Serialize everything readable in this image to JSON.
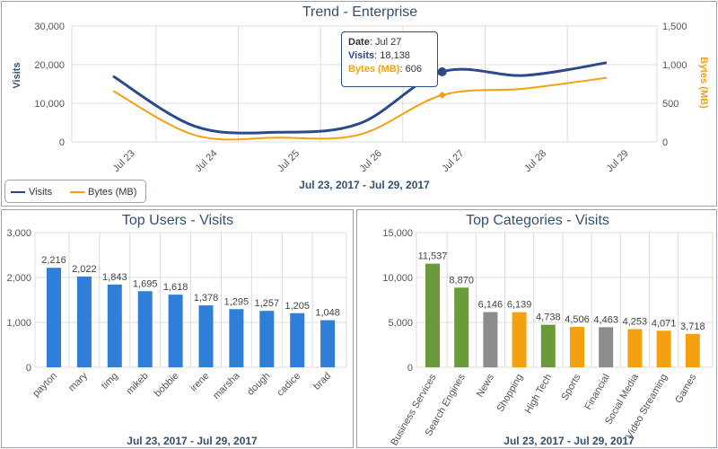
{
  "chart_data": [
    {
      "type": "line",
      "title": "Trend - Enterprise",
      "subtitle": "Jul 23, 2017 - Jul 29, 2017",
      "categories": [
        "Jul 23",
        "Jul 24",
        "Jul 25",
        "Jul 26",
        "Jul 27",
        "Jul 28",
        "Jul 29"
      ],
      "y_left": {
        "label": "Visits",
        "ticks": [
          "0",
          "10,000",
          "20,000",
          "30,000"
        ],
        "range": [
          0,
          30000
        ]
      },
      "y_right": {
        "label": "Bytes (MB)",
        "ticks": [
          "0",
          "500",
          "1,000",
          "1,500"
        ],
        "range": [
          0,
          1500
        ]
      },
      "series": [
        {
          "name": "Visits",
          "axis": "left",
          "color": "#2c4a8a",
          "values": [
            17000,
            4000,
            2500,
            4800,
            18138,
            17200,
            20500
          ]
        },
        {
          "name": "Bytes (MB)",
          "axis": "right",
          "color": "#f5a00f",
          "values": [
            660,
            85,
            55,
            95,
            606,
            690,
            830
          ]
        }
      ],
      "grid": true,
      "legend": "bottom-left",
      "tooltip": {
        "date_label": "Date",
        "date_value": "Jul 27",
        "visits_label": "Visits",
        "visits_value": "18,138",
        "bytes_label": "Bytes (MB)",
        "bytes_value": "606"
      }
    },
    {
      "type": "bar",
      "title": "Top Users - Visits",
      "subtitle": "Jul 23, 2017 - Jul 29, 2017",
      "categories": [
        "payton",
        "mary",
        "timg",
        "mikeb",
        "bobbie",
        "irene",
        "marsha",
        "dough",
        "cadice",
        "brad"
      ],
      "values": [
        2216,
        2022,
        1843,
        1695,
        1618,
        1378,
        1295,
        1257,
        1205,
        1048
      ],
      "value_labels": [
        "2,216",
        "2,022",
        "1,843",
        "1,695",
        "1,618",
        "1,378",
        "1,295",
        "1,257",
        "1,205",
        "1,048"
      ],
      "y_ticks": [
        "0",
        "1,000",
        "2,000",
        "3,000"
      ],
      "ylim": [
        0,
        3000
      ],
      "color": "#2f7ed8",
      "grid": true
    },
    {
      "type": "bar",
      "title": "Top Categories - Visits",
      "subtitle": "Jul 23, 2017 - Jul 29, 2017",
      "categories": [
        "Business Services",
        "Search Engines",
        "News",
        "Shopping",
        "High Tech",
        "Sports",
        "Financial",
        "Social Media",
        "Video Streaming",
        "Games"
      ],
      "values": [
        11537,
        8870,
        6146,
        6139,
        4738,
        4506,
        4463,
        4253,
        4071,
        3718
      ],
      "value_labels": [
        "11,537",
        "8,870",
        "6,146",
        "6,139",
        "4,738",
        "4,506",
        "4,463",
        "4,253",
        "4,071",
        "3,718"
      ],
      "colors": [
        "#6a9a3a",
        "#6a9a3a",
        "#8c8c8c",
        "#f5a00f",
        "#6a9a3a",
        "#f5a00f",
        "#8c8c8c",
        "#f5a00f",
        "#f5a00f",
        "#f5a00f"
      ],
      "y_ticks": [
        "0",
        "5,000",
        "10,000",
        "15,000"
      ],
      "ylim": [
        0,
        15000
      ],
      "grid": true
    }
  ]
}
